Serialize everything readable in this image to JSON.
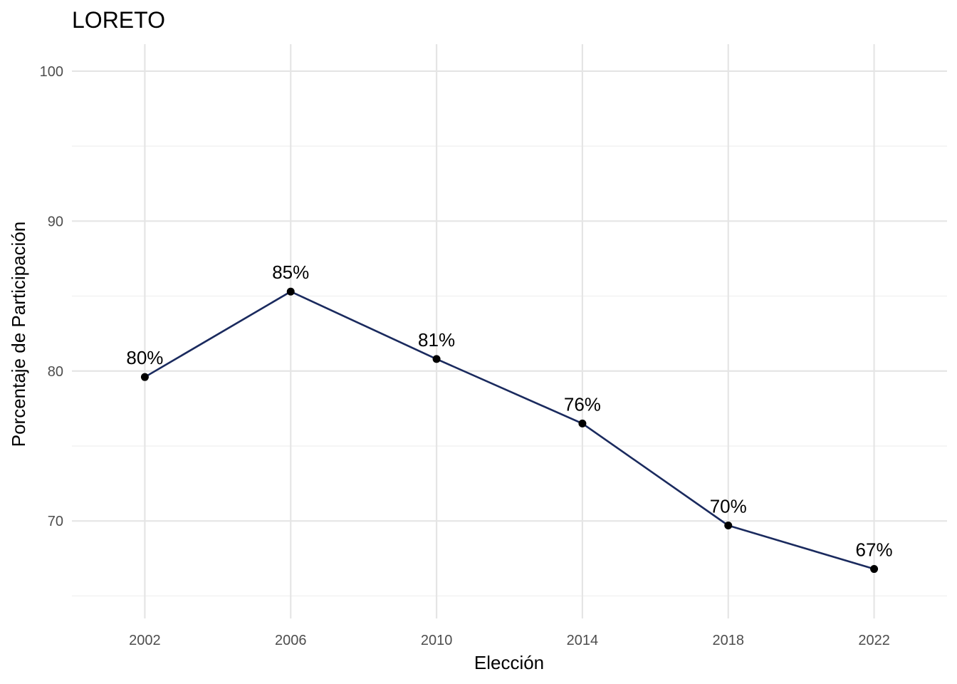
{
  "chart_data": {
    "type": "line",
    "title": "LORETO",
    "xlabel": "Elección",
    "ylabel": "Porcentaje de Participación",
    "x": [
      2002,
      2006,
      2010,
      2014,
      2018,
      2022
    ],
    "x_ticks": [
      "2002",
      "2006",
      "2010",
      "2014",
      "2018",
      "2022"
    ],
    "xlim": [
      2000,
      2024
    ],
    "y_ticks": [
      "70",
      "80",
      "90",
      "100"
    ],
    "ylim": [
      63.5,
      101.8
    ],
    "series": [
      {
        "values": [
          79.6,
          85.3,
          80.8,
          76.5,
          69.7,
          66.8
        ],
        "labels": [
          "80%",
          "85%",
          "81%",
          "76%",
          "70%",
          "67%"
        ],
        "line_color": "#1a2a5e",
        "point_color": "#000000"
      }
    ],
    "grid": true,
    "legend": "none"
  }
}
